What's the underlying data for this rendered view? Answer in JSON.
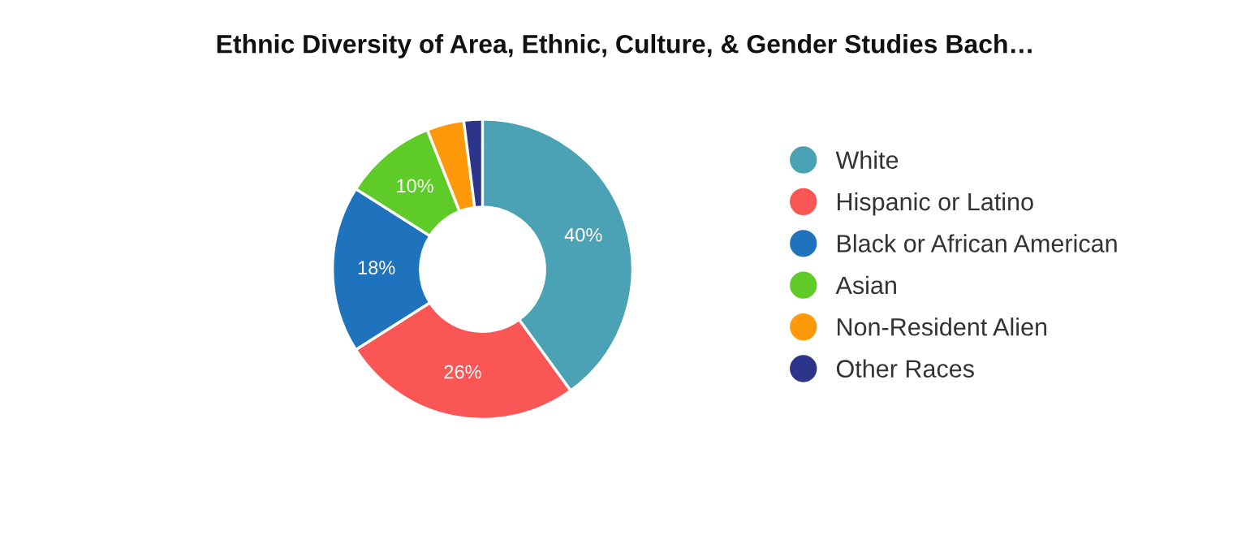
{
  "chart_data": {
    "type": "donut",
    "title": "Ethnic Diversity of Area, Ethnic, Culture, & Gender Studies Bach…",
    "categories": [
      "White",
      "Hispanic or Latino",
      "Black or African American",
      "Asian",
      "Non-Resident Alien",
      "Other Races"
    ],
    "values": [
      40,
      26,
      18,
      10,
      4,
      2
    ],
    "colors": [
      "#4aa2b4",
      "#fa5655",
      "#1f73bd",
      "#5ecb28",
      "#fe9a0a",
      "#2c3589"
    ],
    "value_labels": [
      "40%",
      "26%",
      "18%",
      "10%",
      null,
      null
    ],
    "legend": "right"
  }
}
